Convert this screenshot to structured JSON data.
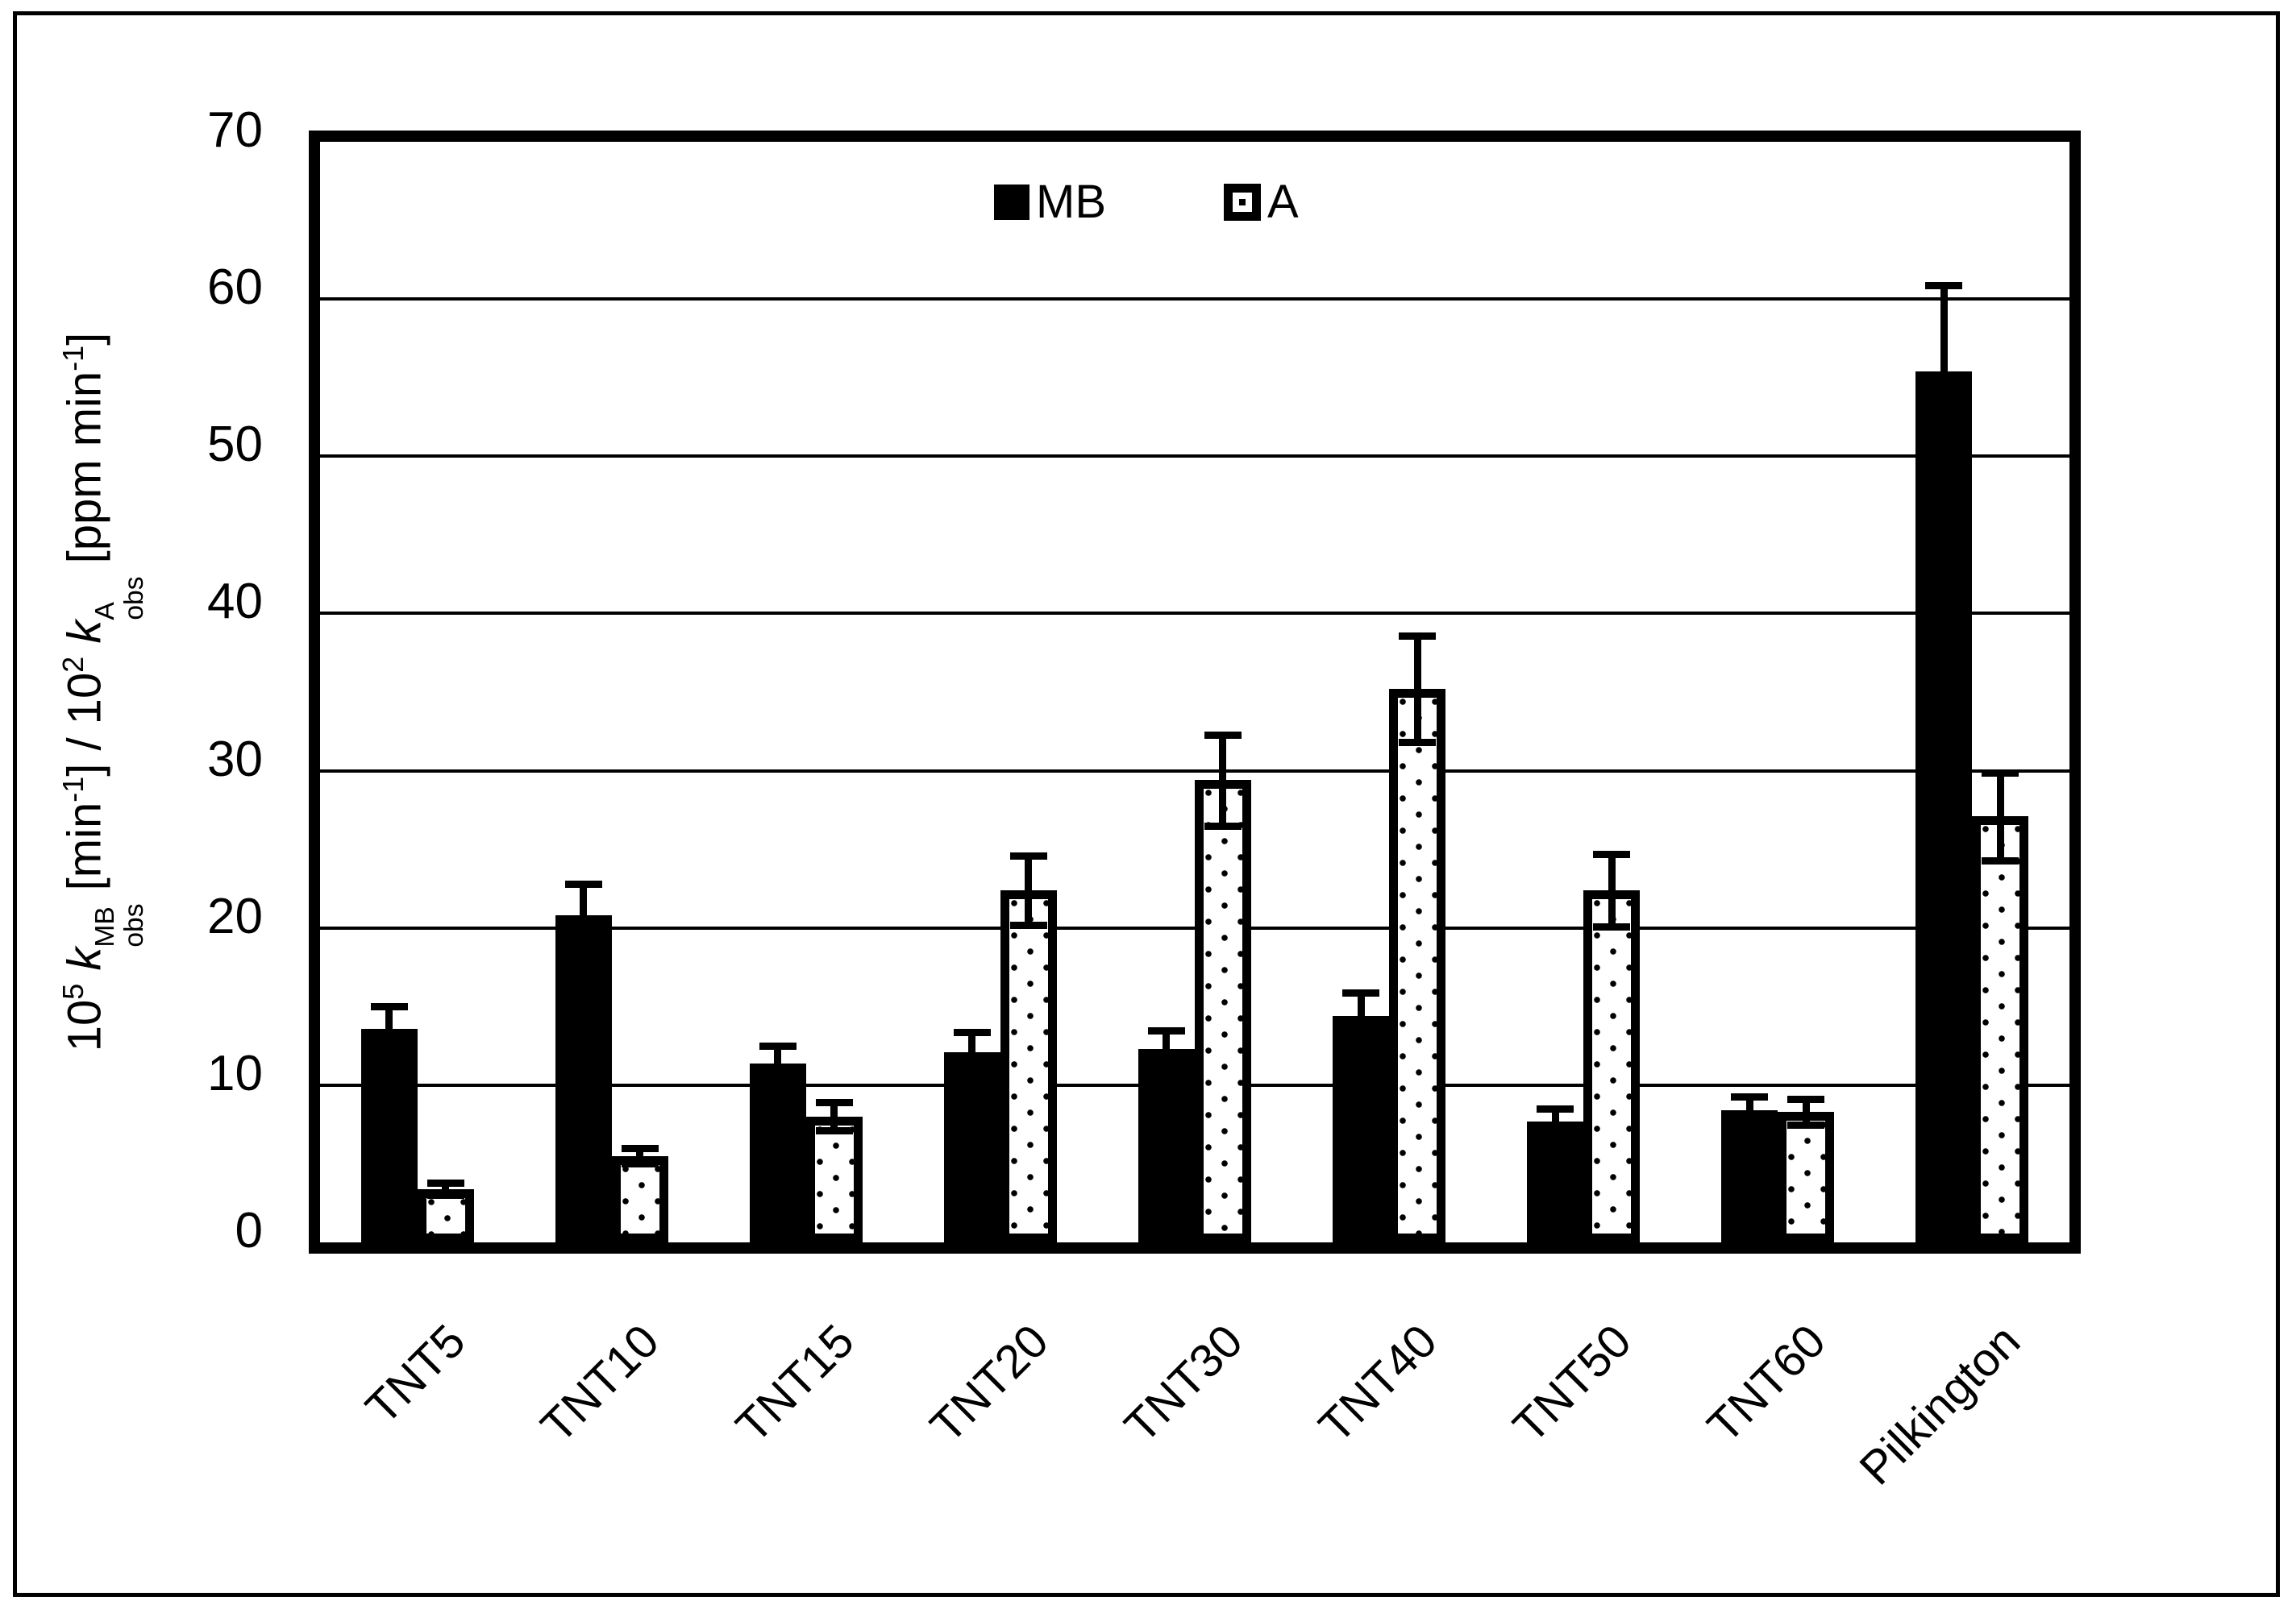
{
  "accent_color": "#000000",
  "background_color": "#ffffff",
  "chart_data": {
    "type": "bar",
    "title": "",
    "grid": "horizontal",
    "categories": [
      "TNT5",
      "TNT10",
      "TNT15",
      "TNT20",
      "TNT30",
      "TNT40",
      "TNT50",
      "TNT60",
      "Pilkington"
    ],
    "series": [
      {
        "name": "MB",
        "fill": "solid-black",
        "values": [
          13.6,
          20.8,
          11.4,
          12.1,
          12.3,
          14.4,
          7.7,
          8.4,
          55.4
        ],
        "errors": [
          1.4,
          2.0,
          1.1,
          1.3,
          1.2,
          1.5,
          0.8,
          0.9,
          5.5
        ]
      },
      {
        "name": "A",
        "fill": "dotted-white",
        "values": [
          3.4,
          5.5,
          8.0,
          22.4,
          29.4,
          35.2,
          22.4,
          8.3,
          27.1
        ],
        "errors": [
          0.4,
          0.5,
          0.9,
          2.2,
          2.9,
          3.4,
          2.3,
          0.8,
          2.8
        ]
      }
    ],
    "ylim": [
      0,
      70
    ],
    "yticks": [
      0,
      10,
      20,
      30,
      40,
      50,
      60,
      70
    ],
    "legend_position": "top-center",
    "xlabel": "",
    "ylabel_text": "10^5 k_obs^MB [min^-1] / 10^2 k_obs^A [ppm min^-1]",
    "ylabel_parts": [
      {
        "text": "10"
      },
      {
        "text": "5",
        "style": "sup"
      },
      {
        "text": " "
      },
      {
        "text": "k",
        "style": "italic"
      },
      {
        "over": "MB",
        "under": "obs",
        "style": "stack"
      },
      {
        "text": " [min"
      },
      {
        "text": "-1",
        "style": "sup"
      },
      {
        "text": "] / 10"
      },
      {
        "text": "2",
        "style": "sup"
      },
      {
        "text": " "
      },
      {
        "text": "k",
        "style": "italic"
      },
      {
        "over": "A",
        "under": "obs",
        "style": "stack"
      },
      {
        "text": " [ppm min"
      },
      {
        "text": "-1",
        "style": "sup"
      },
      {
        "text": "]"
      }
    ]
  }
}
